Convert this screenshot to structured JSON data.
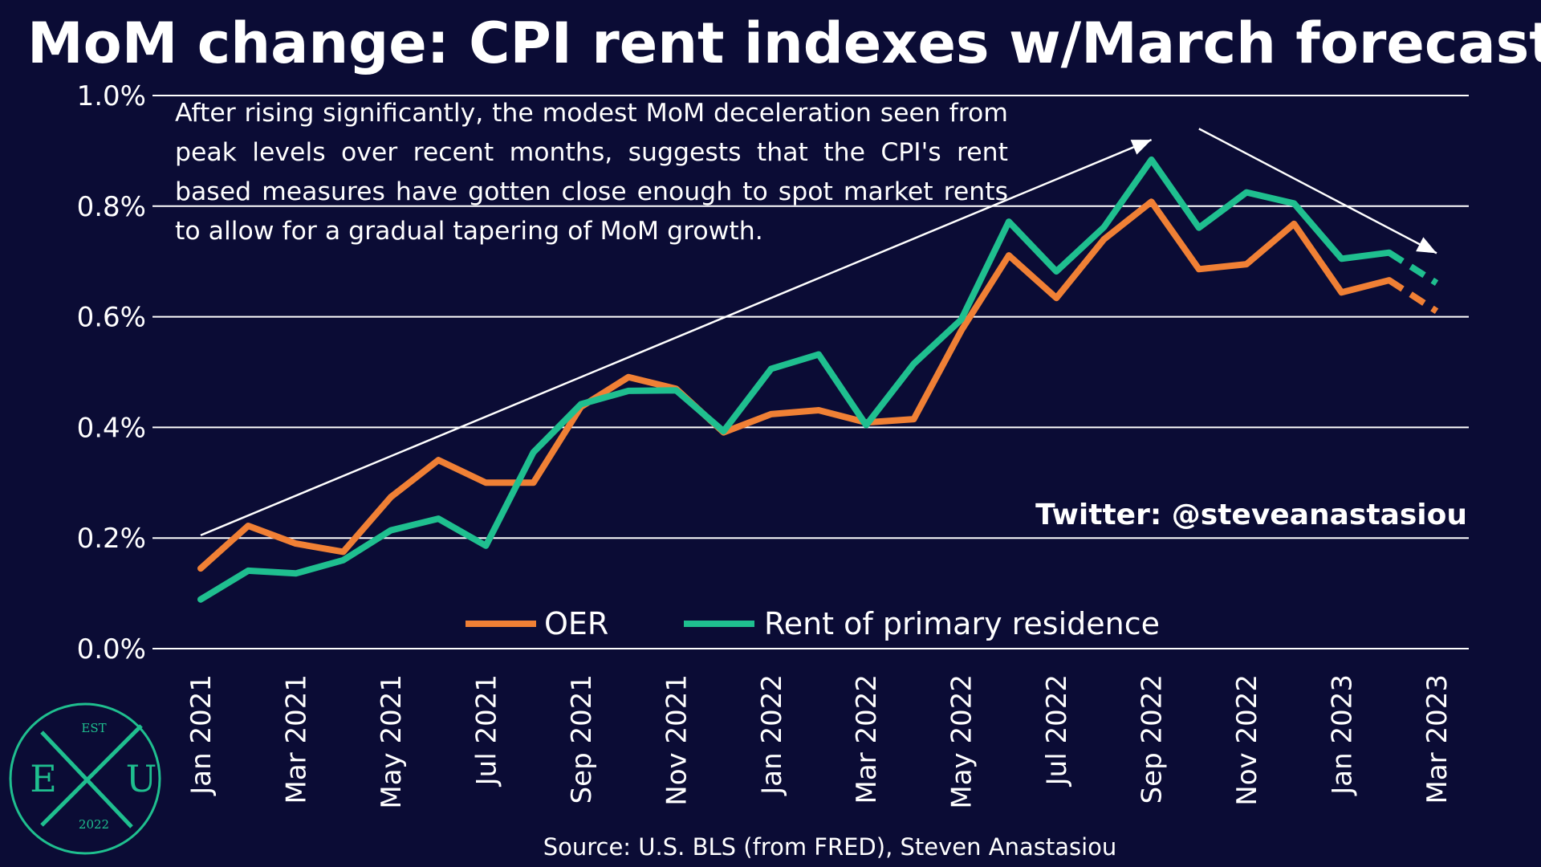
{
  "chart_data": {
    "type": "line",
    "title": "MoM change: CPI rent indexes w/March forecast",
    "x": [
      "Jan 2021",
      "Feb 2021",
      "Mar 2021",
      "Apr 2021",
      "May 2021",
      "Jun 2021",
      "Jul 2021",
      "Aug 2021",
      "Sep 2021",
      "Oct 2021",
      "Nov 2021",
      "Dec 2021",
      "Jan 2022",
      "Feb 2022",
      "Mar 2022",
      "Apr 2022",
      "May 2022",
      "Jun 2022",
      "Jul 2022",
      "Aug 2022",
      "Sep 2022",
      "Oct 2022",
      "Nov 2022",
      "Dec 2022",
      "Jan 2023",
      "Feb 2023",
      "Mar 2023"
    ],
    "x_tick_labels": [
      "Jan 2021",
      "Mar 2021",
      "May 2021",
      "Jul 2021",
      "Sep 2021",
      "Nov 2021",
      "Jan 2022",
      "Mar 2022",
      "May 2022",
      "Jul 2022",
      "Sep 2022",
      "Nov 2022",
      "Jan 2023",
      "Mar 2023"
    ],
    "series": [
      {
        "name": "OER",
        "color": "#f08035",
        "values": [
          0.145,
          0.222,
          0.19,
          0.175,
          0.274,
          0.341,
          0.3,
          0.3,
          0.437,
          0.491,
          0.47,
          0.391,
          0.424,
          0.431,
          0.409,
          0.415,
          0.575,
          0.711,
          0.634,
          0.74,
          0.808,
          0.686,
          0.695,
          0.768,
          0.644,
          0.666,
          0.61
        ],
        "forecast_from": "Feb 2023"
      },
      {
        "name": "Rent of primary residence",
        "color": "#1fbf8f",
        "values": [
          0.089,
          0.141,
          0.136,
          0.16,
          0.214,
          0.235,
          0.186,
          0.355,
          0.442,
          0.466,
          0.467,
          0.393,
          0.506,
          0.532,
          0.404,
          0.515,
          0.595,
          0.772,
          0.682,
          0.762,
          0.884,
          0.761,
          0.825,
          0.805,
          0.705,
          0.716,
          0.661
        ],
        "forecast_from": "Feb 2023"
      }
    ],
    "y_tick_labels": [
      "0.0%",
      "0.2%",
      "0.4%",
      "0.6%",
      "0.8%",
      "1.0%"
    ],
    "ylim": [
      0,
      1.0
    ],
    "grid": "horizontal",
    "legend_position": "bottom",
    "annotation": "After rising significantly, the modest MoM deceleration seen from peak levels over recent months, suggests that the CPI's rent based measures have gotten close enough to spot market rents to allow for a gradual tapering of MoM growth.",
    "trend_arrows": [
      {
        "from": "Jan 2021",
        "from_value": 0.205,
        "to": "Sep 2022",
        "to_value": 0.92
      },
      {
        "from": "Oct 2022",
        "from_value": 0.94,
        "to": "Mar 2023",
        "to_value": 0.715
      }
    ]
  },
  "twitter": "Twitter: @steveanastasiou",
  "source": "Source: U.S. BLS (from FRED), Steven Anastasiou",
  "logo": {
    "top": "EST",
    "left": "E",
    "right": "U",
    "bottom": "2022"
  },
  "colors": {
    "background": "#0b0c35",
    "oer": "#f08035",
    "rent": "#1fbf8f",
    "logo": "#1fbf8f"
  }
}
